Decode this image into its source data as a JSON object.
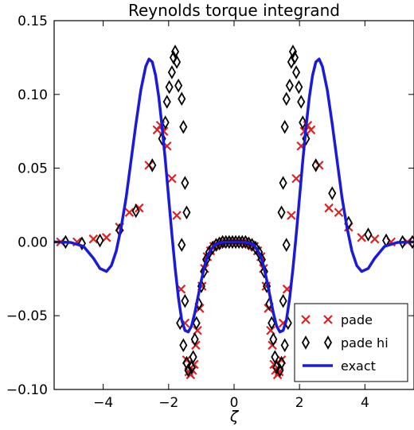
{
  "chart_data": {
    "type": "scatter",
    "title": "Reynolds torque integrand",
    "xlabel": "ζ",
    "ylabel": "",
    "xlim": [
      -5.5,
      5.5
    ],
    "ylim": [
      -0.1,
      0.15
    ],
    "xticks": [
      -4,
      -2,
      0,
      2,
      4
    ],
    "xtick_labels": [
      "−4",
      "−2",
      "0",
      "2",
      "4"
    ],
    "yticks": [
      -0.1,
      -0.05,
      0.0,
      0.05,
      0.1,
      0.15
    ],
    "ytick_labels": [
      "−0.10",
      "−0.05",
      "0.00",
      "0.05",
      "0.10",
      "0.15"
    ],
    "grid": false,
    "legend_position": "bottom-right",
    "series": [
      {
        "name": "pade",
        "kind": "scatter",
        "marker": "x",
        "color": "#dd2222",
        "points": [
          [
            -5.3,
            0.0
          ],
          [
            -4.8,
            0.0
          ],
          [
            -4.3,
            0.002
          ],
          [
            -3.9,
            0.003
          ],
          [
            -3.5,
            0.01
          ],
          [
            -3.2,
            0.02
          ],
          [
            -2.9,
            0.023
          ],
          [
            -2.6,
            0.052
          ],
          [
            -2.35,
            0.076
          ],
          [
            -2.25,
            0.079
          ],
          [
            -2.15,
            0.075
          ],
          [
            -2.05,
            0.065
          ],
          [
            -1.9,
            0.043
          ],
          [
            -1.75,
            0.018
          ],
          [
            -1.62,
            -0.032
          ],
          [
            -1.5,
            -0.055
          ],
          [
            -1.45,
            -0.08
          ],
          [
            -1.38,
            -0.088
          ],
          [
            -1.33,
            -0.09
          ],
          [
            -1.27,
            -0.087
          ],
          [
            -1.22,
            -0.083
          ],
          [
            -1.17,
            -0.07
          ],
          [
            -1.12,
            -0.06
          ],
          [
            -1.05,
            -0.045
          ],
          [
            -0.98,
            -0.03
          ],
          [
            -0.9,
            -0.018
          ],
          [
            -0.82,
            -0.01
          ],
          [
            -0.72,
            -0.006
          ],
          [
            -0.62,
            -0.003
          ],
          [
            -0.52,
            -0.002
          ],
          [
            -0.4,
            -0.001
          ],
          [
            -0.3,
            0.0
          ],
          [
            -0.2,
            0.0
          ],
          [
            -0.1,
            0.0
          ],
          [
            0.0,
            0.0
          ],
          [
            0.1,
            0.0
          ],
          [
            0.2,
            0.0
          ],
          [
            0.3,
            0.0
          ],
          [
            0.4,
            -0.001
          ],
          [
            0.52,
            -0.002
          ],
          [
            0.62,
            -0.003
          ],
          [
            0.72,
            -0.006
          ],
          [
            0.82,
            -0.01
          ],
          [
            0.9,
            -0.018
          ],
          [
            0.98,
            -0.03
          ],
          [
            1.05,
            -0.045
          ],
          [
            1.12,
            -0.06
          ],
          [
            1.17,
            -0.07
          ],
          [
            1.22,
            -0.083
          ],
          [
            1.27,
            -0.087
          ],
          [
            1.33,
            -0.09
          ],
          [
            1.38,
            -0.088
          ],
          [
            1.45,
            -0.08
          ],
          [
            1.5,
            -0.055
          ],
          [
            1.62,
            -0.032
          ],
          [
            1.75,
            0.018
          ],
          [
            1.9,
            0.043
          ],
          [
            2.05,
            0.065
          ],
          [
            2.15,
            0.075
          ],
          [
            2.25,
            0.079
          ],
          [
            2.35,
            0.076
          ],
          [
            2.6,
            0.052
          ],
          [
            2.9,
            0.023
          ],
          [
            3.2,
            0.02
          ],
          [
            3.5,
            0.01
          ],
          [
            3.9,
            0.003
          ],
          [
            4.3,
            0.002
          ],
          [
            4.8,
            0.0
          ],
          [
            5.3,
            0.0
          ]
        ]
      },
      {
        "name": "pade hi",
        "kind": "scatter",
        "marker": "diamond",
        "color": "#000000",
        "points": [
          [
            -5.15,
            0.0
          ],
          [
            -4.65,
            -0.001
          ],
          [
            -4.1,
            0.001
          ],
          [
            -3.5,
            0.008
          ],
          [
            -3.0,
            0.021
          ],
          [
            -2.5,
            0.052
          ],
          [
            -2.2,
            0.07
          ],
          [
            -2.1,
            0.081
          ],
          [
            -2.05,
            0.095
          ],
          [
            -1.98,
            0.105
          ],
          [
            -1.9,
            0.115
          ],
          [
            -1.85,
            0.125
          ],
          [
            -1.8,
            0.129
          ],
          [
            -1.75,
            0.122
          ],
          [
            -1.7,
            0.106
          ],
          [
            -1.6,
            0.097
          ],
          [
            -1.55,
            0.078
          ],
          [
            -1.5,
            0.04
          ],
          [
            -1.45,
            0.02
          ],
          [
            -1.6,
            -0.002
          ],
          [
            -1.5,
            -0.04
          ],
          [
            -1.65,
            -0.055
          ],
          [
            -1.55,
            -0.07
          ],
          [
            -1.45,
            -0.082
          ],
          [
            -1.4,
            -0.087
          ],
          [
            -1.3,
            -0.085
          ],
          [
            -1.25,
            -0.078
          ],
          [
            -1.2,
            -0.066
          ],
          [
            -1.15,
            -0.055
          ],
          [
            -1.08,
            -0.042
          ],
          [
            -1.0,
            -0.03
          ],
          [
            -0.92,
            -0.02
          ],
          [
            -0.85,
            -0.012
          ],
          [
            -0.76,
            -0.007
          ],
          [
            -0.66,
            -0.004
          ],
          [
            -0.55,
            -0.002
          ],
          [
            -0.45,
            -0.001
          ],
          [
            -0.35,
            0.0
          ],
          [
            -0.25,
            0.0
          ],
          [
            -0.15,
            0.0
          ],
          [
            -0.05,
            0.0
          ],
          [
            0.05,
            0.0
          ],
          [
            0.15,
            0.0
          ],
          [
            0.25,
            0.0
          ],
          [
            0.35,
            0.0
          ],
          [
            0.45,
            -0.001
          ],
          [
            0.55,
            -0.002
          ],
          [
            0.66,
            -0.004
          ],
          [
            0.76,
            -0.007
          ],
          [
            0.85,
            -0.012
          ],
          [
            0.92,
            -0.02
          ],
          [
            1.0,
            -0.03
          ],
          [
            1.08,
            -0.042
          ],
          [
            1.15,
            -0.055
          ],
          [
            1.2,
            -0.066
          ],
          [
            1.25,
            -0.078
          ],
          [
            1.3,
            -0.085
          ],
          [
            1.4,
            -0.087
          ],
          [
            1.45,
            -0.082
          ],
          [
            1.55,
            -0.07
          ],
          [
            1.65,
            -0.055
          ],
          [
            1.5,
            -0.04
          ],
          [
            1.6,
            -0.002
          ],
          [
            1.45,
            0.02
          ],
          [
            1.5,
            0.04
          ],
          [
            1.55,
            0.078
          ],
          [
            1.6,
            0.097
          ],
          [
            1.7,
            0.106
          ],
          [
            1.75,
            0.122
          ],
          [
            1.8,
            0.129
          ],
          [
            1.85,
            0.125
          ],
          [
            1.9,
            0.115
          ],
          [
            1.98,
            0.105
          ],
          [
            2.05,
            0.095
          ],
          [
            2.1,
            0.081
          ],
          [
            2.2,
            0.07
          ],
          [
            2.5,
            0.052
          ],
          [
            3.0,
            0.033
          ],
          [
            3.5,
            0.013
          ],
          [
            4.1,
            0.005
          ],
          [
            4.65,
            0.001
          ],
          [
            5.15,
            0.0
          ],
          [
            5.45,
            0.0
          ]
        ]
      },
      {
        "name": "exact",
        "kind": "line",
        "color": "#1a1adb",
        "points": [
          [
            -5.5,
            0.0
          ],
          [
            -5.0,
            -0.0003
          ],
          [
            -4.6,
            -0.003
          ],
          [
            -4.3,
            -0.011
          ],
          [
            -4.1,
            -0.018
          ],
          [
            -3.9,
            -0.02
          ],
          [
            -3.75,
            -0.016
          ],
          [
            -3.6,
            -0.006
          ],
          [
            -3.45,
            0.01
          ],
          [
            -3.3,
            0.03
          ],
          [
            -3.15,
            0.055
          ],
          [
            -3.0,
            0.08
          ],
          [
            -2.85,
            0.103
          ],
          [
            -2.7,
            0.119
          ],
          [
            -2.6,
            0.124
          ],
          [
            -2.5,
            0.122
          ],
          [
            -2.4,
            0.113
          ],
          [
            -2.3,
            0.098
          ],
          [
            -2.2,
            0.078
          ],
          [
            -2.1,
            0.055
          ],
          [
            -2.0,
            0.03
          ],
          [
            -1.9,
            0.005
          ],
          [
            -1.8,
            -0.018
          ],
          [
            -1.7,
            -0.038
          ],
          [
            -1.6,
            -0.053
          ],
          [
            -1.5,
            -0.06
          ],
          [
            -1.4,
            -0.061
          ],
          [
            -1.3,
            -0.057
          ],
          [
            -1.2,
            -0.048
          ],
          [
            -1.1,
            -0.037
          ],
          [
            -1.0,
            -0.026
          ],
          [
            -0.9,
            -0.016
          ],
          [
            -0.8,
            -0.009
          ],
          [
            -0.7,
            -0.005
          ],
          [
            -0.6,
            -0.002
          ],
          [
            -0.45,
            -0.0006
          ],
          [
            -0.3,
            -0.0001
          ],
          [
            0.0,
            0.0
          ],
          [
            0.3,
            -0.0001
          ],
          [
            0.45,
            -0.0006
          ],
          [
            0.6,
            -0.002
          ],
          [
            0.7,
            -0.005
          ],
          [
            0.8,
            -0.009
          ],
          [
            0.9,
            -0.016
          ],
          [
            1.0,
            -0.026
          ],
          [
            1.1,
            -0.037
          ],
          [
            1.2,
            -0.048
          ],
          [
            1.3,
            -0.057
          ],
          [
            1.4,
            -0.061
          ],
          [
            1.5,
            -0.06
          ],
          [
            1.6,
            -0.053
          ],
          [
            1.7,
            -0.038
          ],
          [
            1.8,
            -0.018
          ],
          [
            1.9,
            0.005
          ],
          [
            2.0,
            0.03
          ],
          [
            2.1,
            0.055
          ],
          [
            2.2,
            0.078
          ],
          [
            2.3,
            0.098
          ],
          [
            2.4,
            0.113
          ],
          [
            2.5,
            0.122
          ],
          [
            2.6,
            0.124
          ],
          [
            2.7,
            0.119
          ],
          [
            2.85,
            0.103
          ],
          [
            3.0,
            0.08
          ],
          [
            3.15,
            0.055
          ],
          [
            3.3,
            0.03
          ],
          [
            3.45,
            0.01
          ],
          [
            3.6,
            -0.006
          ],
          [
            3.75,
            -0.016
          ],
          [
            3.9,
            -0.02
          ],
          [
            4.1,
            -0.018
          ],
          [
            4.3,
            -0.011
          ],
          [
            4.6,
            -0.003
          ],
          [
            5.0,
            -0.0003
          ],
          [
            5.5,
            0.0
          ]
        ]
      }
    ]
  }
}
